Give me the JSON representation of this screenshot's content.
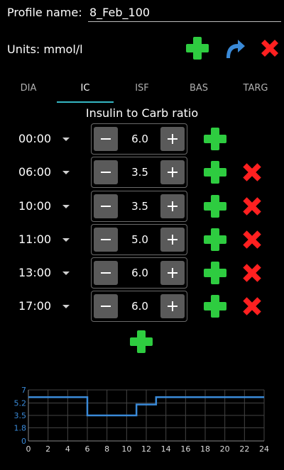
{
  "header": {
    "profile_label": "Profile name:",
    "profile_value": "8_Feb_100",
    "units_label": "Units: mmol/l"
  },
  "colors": {
    "accent": "#35b8c4",
    "add": "#2ecc40",
    "delete": "#ff2020",
    "undo": "#3a8ad8"
  },
  "tabs": [
    {
      "label": "DIA",
      "active": false
    },
    {
      "label": "IC",
      "active": true
    },
    {
      "label": "ISF",
      "active": false
    },
    {
      "label": "BAS",
      "active": false
    },
    {
      "label": "TARG",
      "active": false
    }
  ],
  "section_title": "Insulin to Carb ratio",
  "rows": [
    {
      "time": "00:00",
      "value": "6.0",
      "deletable": false
    },
    {
      "time": "06:00",
      "value": "3.5",
      "deletable": true
    },
    {
      "time": "10:00",
      "value": "3.5",
      "deletable": true
    },
    {
      "time": "11:00",
      "value": "5.0",
      "deletable": true
    },
    {
      "time": "13:00",
      "value": "6.0",
      "deletable": true
    },
    {
      "time": "17:00",
      "value": "6.0",
      "deletable": true
    }
  ],
  "chart_data": {
    "type": "line",
    "step": true,
    "x": [
      0,
      6,
      10,
      11,
      13,
      17,
      24
    ],
    "y": [
      6.0,
      3.5,
      3.5,
      5.0,
      6.0,
      6.0,
      6.0
    ],
    "xlim": [
      0,
      24
    ],
    "ylim": [
      0,
      7
    ],
    "x_ticks": [
      "0",
      "2",
      "4",
      "6",
      "8",
      "10",
      "12",
      "14",
      "16",
      "18",
      "20",
      "22",
      "24"
    ],
    "y_ticks": [
      "7",
      "5.2",
      "3.5",
      "1.8",
      "0"
    ],
    "grid": true,
    "line_color": "#3a8ad8"
  }
}
